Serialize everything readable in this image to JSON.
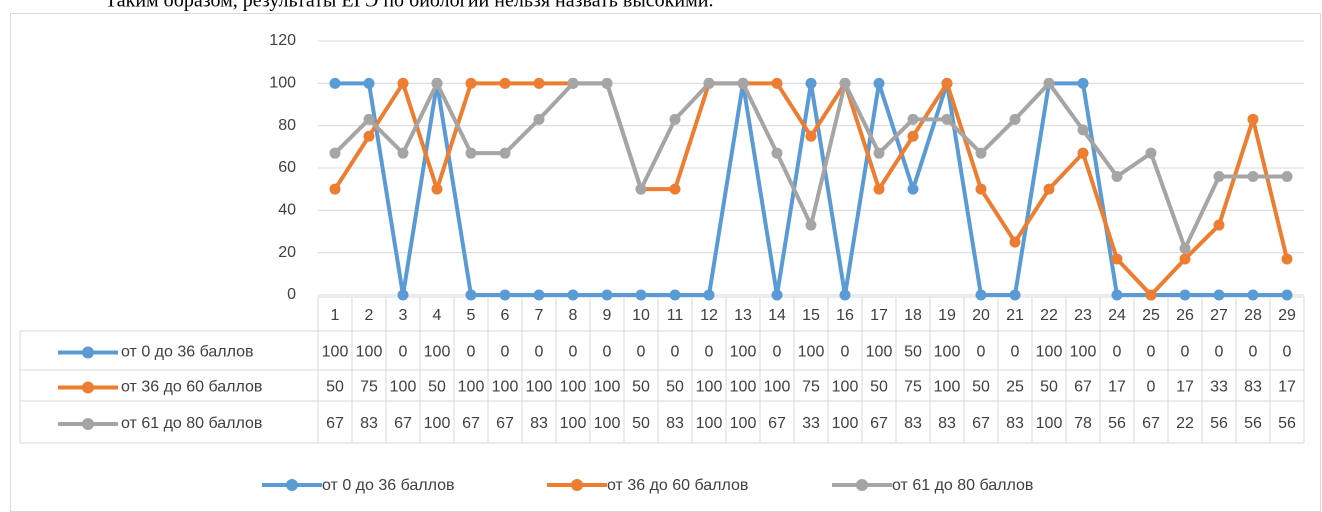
{
  "text": "Таким образом, результаты ЕГЭ по биологии нельзя назвать высокими.",
  "chart_data": {
    "type": "line",
    "categories": [
      "1",
      "2",
      "3",
      "4",
      "5",
      "6",
      "7",
      "8",
      "9",
      "10",
      "11",
      "12",
      "13",
      "14",
      "15",
      "16",
      "17",
      "18",
      "19",
      "20",
      "21",
      "22",
      "23",
      "24",
      "25",
      "26",
      "27",
      "28",
      "29"
    ],
    "series": [
      {
        "name": "от 0 до 36 баллов",
        "color": "#5b9bd5",
        "values": [
          100,
          100,
          0,
          100,
          0,
          0,
          0,
          0,
          0,
          0,
          0,
          0,
          100,
          0,
          100,
          0,
          100,
          50,
          100,
          0,
          0,
          100,
          100,
          0,
          0,
          0,
          0,
          0,
          0
        ]
      },
      {
        "name": "от 36 до 60 баллов",
        "color": "#ed7d31",
        "values": [
          50,
          75,
          100,
          50,
          100,
          100,
          100,
          100,
          100,
          50,
          50,
          100,
          100,
          100,
          75,
          100,
          50,
          75,
          100,
          50,
          25,
          50,
          67,
          17,
          0,
          17,
          33,
          83,
          17
        ]
      },
      {
        "name": "от 61 до 80 баллов",
        "color": "#a5a5a5",
        "values": [
          67,
          83,
          67,
          100,
          67,
          67,
          83,
          100,
          100,
          50,
          83,
          100,
          100,
          67,
          33,
          100,
          67,
          83,
          83,
          67,
          83,
          100,
          78,
          56,
          67,
          22,
          56,
          56,
          56
        ]
      }
    ],
    "ylim": [
      0,
      120
    ],
    "yticks": [
      0,
      20,
      40,
      60,
      80,
      100,
      120
    ],
    "grid": true,
    "legend": "bottom",
    "data_table": true
  }
}
